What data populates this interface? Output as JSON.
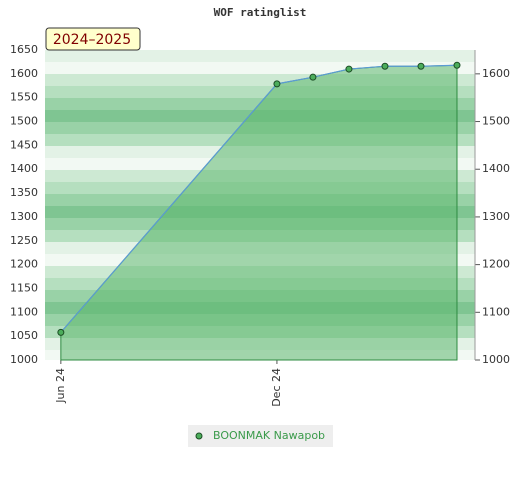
{
  "chart_data": {
    "type": "area",
    "title": "WOF ratinglist",
    "annotation": "2024–2025",
    "x": [
      0,
      6,
      7,
      8,
      9,
      10,
      11
    ],
    "xlim": [
      -0.44,
      11.5
    ],
    "xticks": [
      {
        "value": 0,
        "label": "Jun 24"
      },
      {
        "value": 6,
        "label": "Dec 24"
      }
    ],
    "series": [
      {
        "name": "BOONMAK Nawapob",
        "color": "#5b9bd5",
        "fill": "#5fb86f",
        "marker_color": "#4cad5b",
        "values": [
          1058,
          1579,
          1593,
          1610,
          1616,
          1616,
          1618
        ]
      }
    ],
    "ylim": [
      1000,
      1650
    ],
    "yticks": [
      1000,
      1050,
      1100,
      1150,
      1200,
      1250,
      1300,
      1350,
      1400,
      1450,
      1500,
      1550,
      1600,
      1650
    ],
    "y2lim": [
      1000,
      1650
    ],
    "y2ticks": [
      1000,
      1100,
      1200,
      1300,
      1400,
      1500,
      1600
    ],
    "legend": "bottom"
  }
}
